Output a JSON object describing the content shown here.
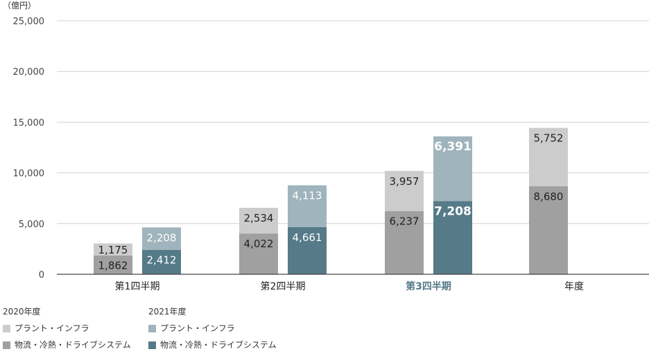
{
  "chart_data": {
    "type": "bar",
    "stacked": true,
    "unit_label": "（億円）",
    "categories": [
      "第1四半期",
      "第2四半期",
      "第3四半期",
      "年度"
    ],
    "highlight_category": "第3四半期",
    "ylim": [
      0,
      25000
    ],
    "yticks": [
      "0",
      "5,000",
      "10,000",
      "15,000",
      "20,000",
      "25,000"
    ],
    "grid": true,
    "groups": [
      {
        "name": "2020年度",
        "series": [
          {
            "name": "物流・冷熱・ドライブシステム",
            "color": "#a0a0a0",
            "values": [
              1862,
              4022,
              6237,
              8680
            ],
            "labels": [
              "1,862",
              "4,022",
              "6,237",
              "8,680"
            ]
          },
          {
            "name": "プラント・インフラ",
            "color": "#cccccc",
            "values": [
              1175,
              2534,
              3957,
              5752
            ],
            "labels": [
              "1,175",
              "2,534",
              "3,957",
              "5,752"
            ]
          }
        ]
      },
      {
        "name": "2021年度",
        "series": [
          {
            "name": "物流・冷熱・ドライブシステム",
            "color": "#557a88",
            "values": [
              2412,
              4661,
              7208,
              null
            ],
            "labels": [
              "2,412",
              "4,661",
              "7,208",
              null
            ]
          },
          {
            "name": "プラント・インフラ",
            "color": "#9fb4bc",
            "values": [
              2208,
              4113,
              6391,
              null
            ],
            "labels": [
              "2,208",
              "4,113",
              "6,391",
              null
            ]
          }
        ]
      }
    ]
  },
  "legend": {
    "group_2020": {
      "title": "2020年度",
      "plant_label": "プラント・インフラ",
      "plant_color": "#cccccc",
      "logistics_label": "物流・冷熱・ドライブシステム",
      "logistics_color": "#a0a0a0"
    },
    "group_2021": {
      "title": "2021年度",
      "plant_label": "プラント・インフラ",
      "plant_color": "#9fb4bc",
      "logistics_label": "物流・冷熱・ドライブシステム",
      "logistics_color": "#557a88"
    }
  }
}
